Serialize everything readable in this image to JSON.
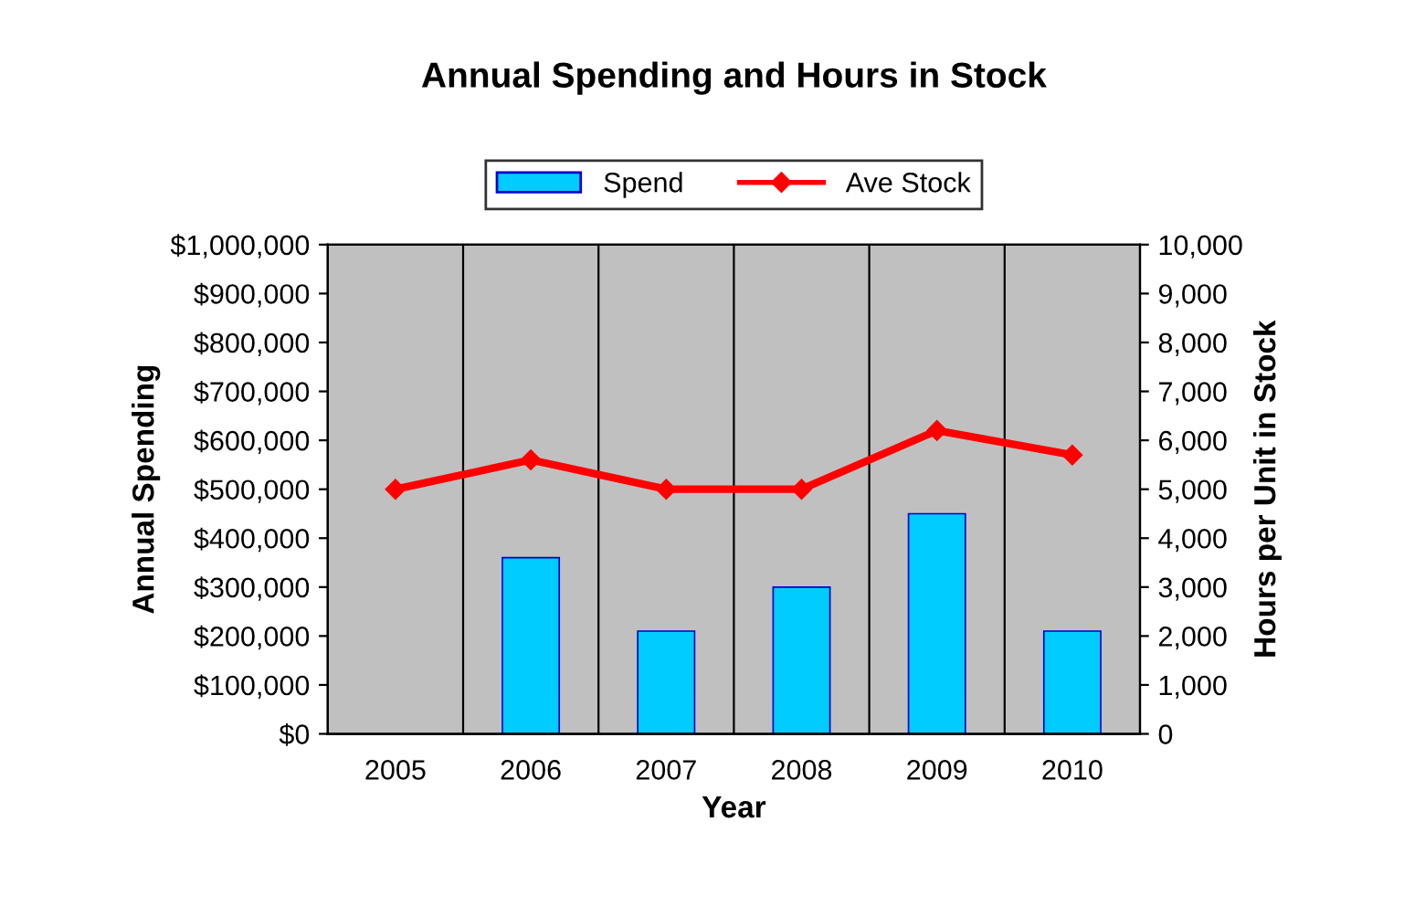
{
  "chart_data": {
    "type": "bar",
    "title": "Annual Spending and Hours in Stock",
    "xlabel": "Year",
    "ylabel": "Annual Spending",
    "y2label": "Hours per Unit in Stock",
    "categories": [
      "2005",
      "2006",
      "2007",
      "2008",
      "2009",
      "2010"
    ],
    "series": [
      {
        "name": "Spend",
        "color": "#00ccff",
        "values": [
          null,
          360000,
          210000,
          300000,
          450000,
          210000
        ]
      },
      {
        "name": "Ave Stock",
        "type": "line",
        "axis": "y2",
        "color": "#ff0000",
        "marker": "diamond",
        "values": [
          5000,
          5600,
          5000,
          5000,
          6200,
          5700
        ]
      }
    ],
    "ylim": [
      0,
      1000000
    ],
    "yticks": [
      {
        "value": 0,
        "label": "$0"
      },
      {
        "value": 100000,
        "label": "$100,000"
      },
      {
        "value": 200000,
        "label": "$200,000"
      },
      {
        "value": 300000,
        "label": "$300,000"
      },
      {
        "value": 400000,
        "label": "$400,000"
      },
      {
        "value": 500000,
        "label": "$500,000"
      },
      {
        "value": 600000,
        "label": "$600,000"
      },
      {
        "value": 700000,
        "label": "$700,000"
      },
      {
        "value": 800000,
        "label": "$800,000"
      },
      {
        "value": 900000,
        "label": "$900,000"
      },
      {
        "value": 1000000,
        "label": "$1,000,000"
      }
    ],
    "y2lim": [
      0,
      10000
    ],
    "y2ticks": [
      0,
      {
        "value": 1000,
        "label": "1,000"
      },
      {
        "value": 2000,
        "label": "2,000"
      },
      {
        "value": 3000,
        "label": "3,000"
      },
      {
        "value": 4000,
        "label": "4,000"
      },
      {
        "value": 5000,
        "label": "5,000"
      },
      {
        "value": 6000,
        "label": "6,000"
      },
      {
        "value": 7000,
        "label": "7,000"
      },
      {
        "value": 8000,
        "label": "8,000"
      },
      {
        "value": 9000,
        "label": "9,000"
      },
      {
        "value": 10000,
        "label": "10,000"
      }
    ],
    "grid": "x",
    "legend": "top"
  }
}
